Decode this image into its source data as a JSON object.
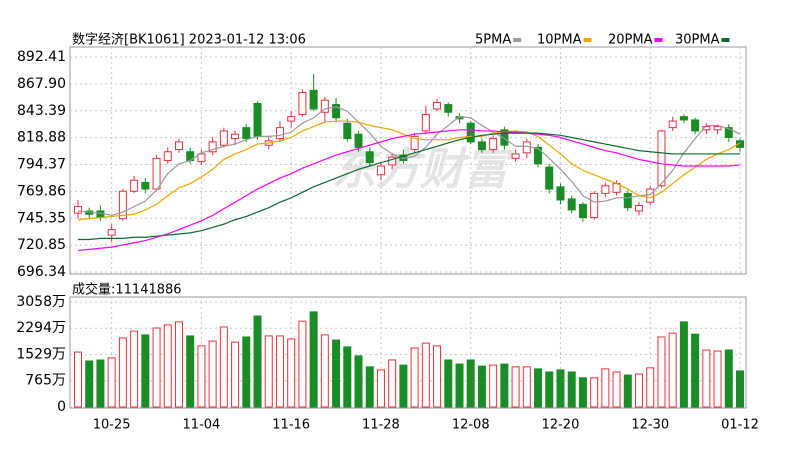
{
  "chart_data": [
    {
      "type": "candlestick",
      "title": "数字经济[BK1061] 2023-01-12 13:06",
      "watermark": "东方财富",
      "up_color": "#e8333b",
      "down_color": "#1b8c26",
      "open": [
        750,
        752,
        752,
        730,
        745,
        770,
        778,
        772,
        798,
        808,
        806,
        797,
        806,
        812,
        818,
        828,
        850,
        812,
        818,
        834,
        840,
        862,
        842,
        849,
        832,
        822,
        806,
        785,
        794,
        803,
        808,
        825,
        845,
        849,
        838,
        832,
        815,
        808,
        826,
        800,
        805,
        810,
        792,
        774,
        763,
        758,
        746,
        768,
        769,
        768,
        752,
        760,
        775,
        828,
        838,
        835,
        826,
        826,
        828,
        816
      ],
      "high": [
        762,
        755,
        757,
        740,
        772,
        784,
        782,
        803,
        810,
        818,
        810,
        808,
        819,
        828,
        825,
        831,
        852,
        820,
        834,
        843,
        863,
        877,
        856,
        855,
        836,
        825,
        810,
        797,
        805,
        808,
        823,
        848,
        854,
        851,
        841,
        834,
        818,
        821,
        829,
        808,
        818,
        813,
        795,
        777,
        766,
        760,
        770,
        778,
        780,
        771,
        760,
        775,
        826,
        838,
        840,
        837,
        832,
        831,
        831,
        818
      ],
      "low": [
        745,
        745,
        743,
        724,
        743,
        768,
        768,
        770,
        795,
        805,
        795,
        794,
        803,
        810,
        812,
        815,
        817,
        808,
        815,
        828,
        838,
        843,
        832,
        833,
        815,
        806,
        793,
        780,
        790,
        795,
        805,
        822,
        843,
        838,
        832,
        813,
        805,
        805,
        808,
        797,
        800,
        792,
        768,
        758,
        750,
        742,
        744,
        765,
        766,
        752,
        748,
        757,
        773,
        825,
        832,
        822,
        822,
        822,
        815,
        806
      ],
      "close": [
        756,
        749,
        746,
        735,
        770,
        780,
        772,
        800,
        806,
        815,
        798,
        804,
        815,
        825,
        822,
        818,
        820,
        816,
        828,
        838,
        860,
        845,
        853,
        837,
        818,
        810,
        796,
        793,
        801,
        798,
        820,
        840,
        851,
        842,
        836,
        815,
        808,
        818,
        812,
        804,
        815,
        795,
        772,
        762,
        753,
        746,
        768,
        775,
        777,
        755,
        757,
        772,
        825,
        834,
        835,
        825,
        829,
        829,
        819,
        810
      ],
      "series": [
        {
          "name": "5PMA",
          "color": "#9a9a9a",
          "values": [
            752,
            751,
            750,
            748,
            751,
            756,
            761,
            771,
            786,
            795,
            798,
            805,
            808,
            811,
            813,
            817,
            820,
            820,
            821,
            824,
            832,
            837,
            845,
            847,
            843,
            833,
            823,
            811,
            804,
            800,
            802,
            810,
            822,
            830,
            838,
            837,
            830,
            824,
            818,
            811,
            811,
            809,
            800,
            790,
            779,
            766,
            760,
            761,
            764,
            764,
            766,
            767,
            777,
            789,
            805,
            818,
            830,
            830,
            827,
            822
          ]
        },
        {
          "name": "10PMA",
          "color": "#f0a500",
          "values": [
            744,
            745,
            746,
            747,
            748,
            749,
            753,
            758,
            766,
            773,
            777,
            783,
            790,
            799,
            804,
            808,
            813,
            814,
            816,
            819,
            825,
            829,
            833,
            834,
            834,
            833,
            830,
            828,
            826,
            822,
            818,
            817,
            817,
            817,
            819,
            820,
            820,
            823,
            824,
            825,
            824,
            820,
            812,
            804,
            795,
            789,
            785,
            781,
            777,
            772,
            766,
            764,
            769,
            777,
            785,
            792,
            799,
            804,
            808,
            814
          ]
        },
        {
          "name": "20PMA",
          "color": "#ff00ff",
          "values": [
            716,
            717,
            718,
            719,
            721,
            723,
            725,
            728,
            731,
            735,
            739,
            743,
            748,
            754,
            760,
            766,
            772,
            777,
            782,
            786,
            791,
            795,
            799,
            803,
            806,
            809,
            812,
            815,
            818,
            820,
            822,
            823,
            824,
            825,
            826,
            826,
            825,
            825,
            824,
            824,
            823,
            822,
            821,
            819,
            816,
            813,
            810,
            807,
            805,
            802,
            799,
            797,
            795,
            794,
            793,
            793,
            793,
            793,
            793,
            794
          ]
        },
        {
          "name": "30PMA",
          "color": "#0b6b2c",
          "values": [
            726,
            726,
            727,
            727,
            727,
            728,
            728,
            729,
            730,
            731,
            732,
            734,
            737,
            740,
            744,
            747,
            751,
            755,
            760,
            764,
            769,
            774,
            778,
            782,
            786,
            790,
            793,
            796,
            799,
            802,
            805,
            808,
            811,
            814,
            817,
            819,
            821,
            822,
            823,
            823,
            823,
            823,
            822,
            821,
            819,
            817,
            815,
            813,
            811,
            809,
            807,
            806,
            805,
            804,
            804,
            804,
            804,
            804,
            804,
            804
          ]
        }
      ],
      "ylim": [
        696.34,
        892.41
      ],
      "yticks": [
        892.41,
        {
          "value": 867.9,
          "label": "867.90"
        },
        843.39,
        818.88,
        794.37,
        769.86,
        745.35,
        720.85,
        696.34
      ],
      "grid": true
    },
    {
      "type": "bar",
      "title": "成交量:11141886",
      "categories": [
        null,
        null,
        null,
        "10-25",
        null,
        null,
        null,
        null,
        null,
        null,
        null,
        "11-04",
        null,
        null,
        null,
        null,
        null,
        null,
        null,
        "11-16",
        null,
        null,
        null,
        null,
        null,
        null,
        null,
        "11-28",
        null,
        null,
        null,
        null,
        null,
        null,
        null,
        "12-08",
        null,
        null,
        null,
        null,
        null,
        null,
        null,
        "12-20",
        null,
        null,
        null,
        null,
        null,
        null,
        null,
        "12-30",
        null,
        null,
        null,
        null,
        null,
        null,
        null,
        "01-12"
      ],
      "values": [
        1600,
        1340,
        1370,
        1430,
        2010,
        2210,
        2100,
        2300,
        2390,
        2480,
        2070,
        1780,
        1920,
        2330,
        1890,
        2040,
        2650,
        2070,
        2070,
        1980,
        2500,
        2770,
        2100,
        1950,
        1750,
        1490,
        1170,
        1080,
        1370,
        1220,
        1720,
        1860,
        1780,
        1370,
        1250,
        1370,
        1190,
        1220,
        1250,
        1170,
        1170,
        1110,
        1020,
        1080,
        1020,
        850,
        850,
        1110,
        1020,
        930,
        960,
        1140,
        2040,
        2150,
        2480,
        2120,
        1660,
        1630,
        1660,
        1050
      ],
      "ylim": [
        0,
        3058
      ],
      "yticks": [
        0,
        {
          "value": 765,
          "label": "765万"
        },
        {
          "value": 1529,
          "label": "1529万"
        },
        {
          "value": 2294,
          "label": "2294万"
        },
        {
          "value": 3058,
          "label": "3058万"
        }
      ],
      "grid": true
    }
  ]
}
